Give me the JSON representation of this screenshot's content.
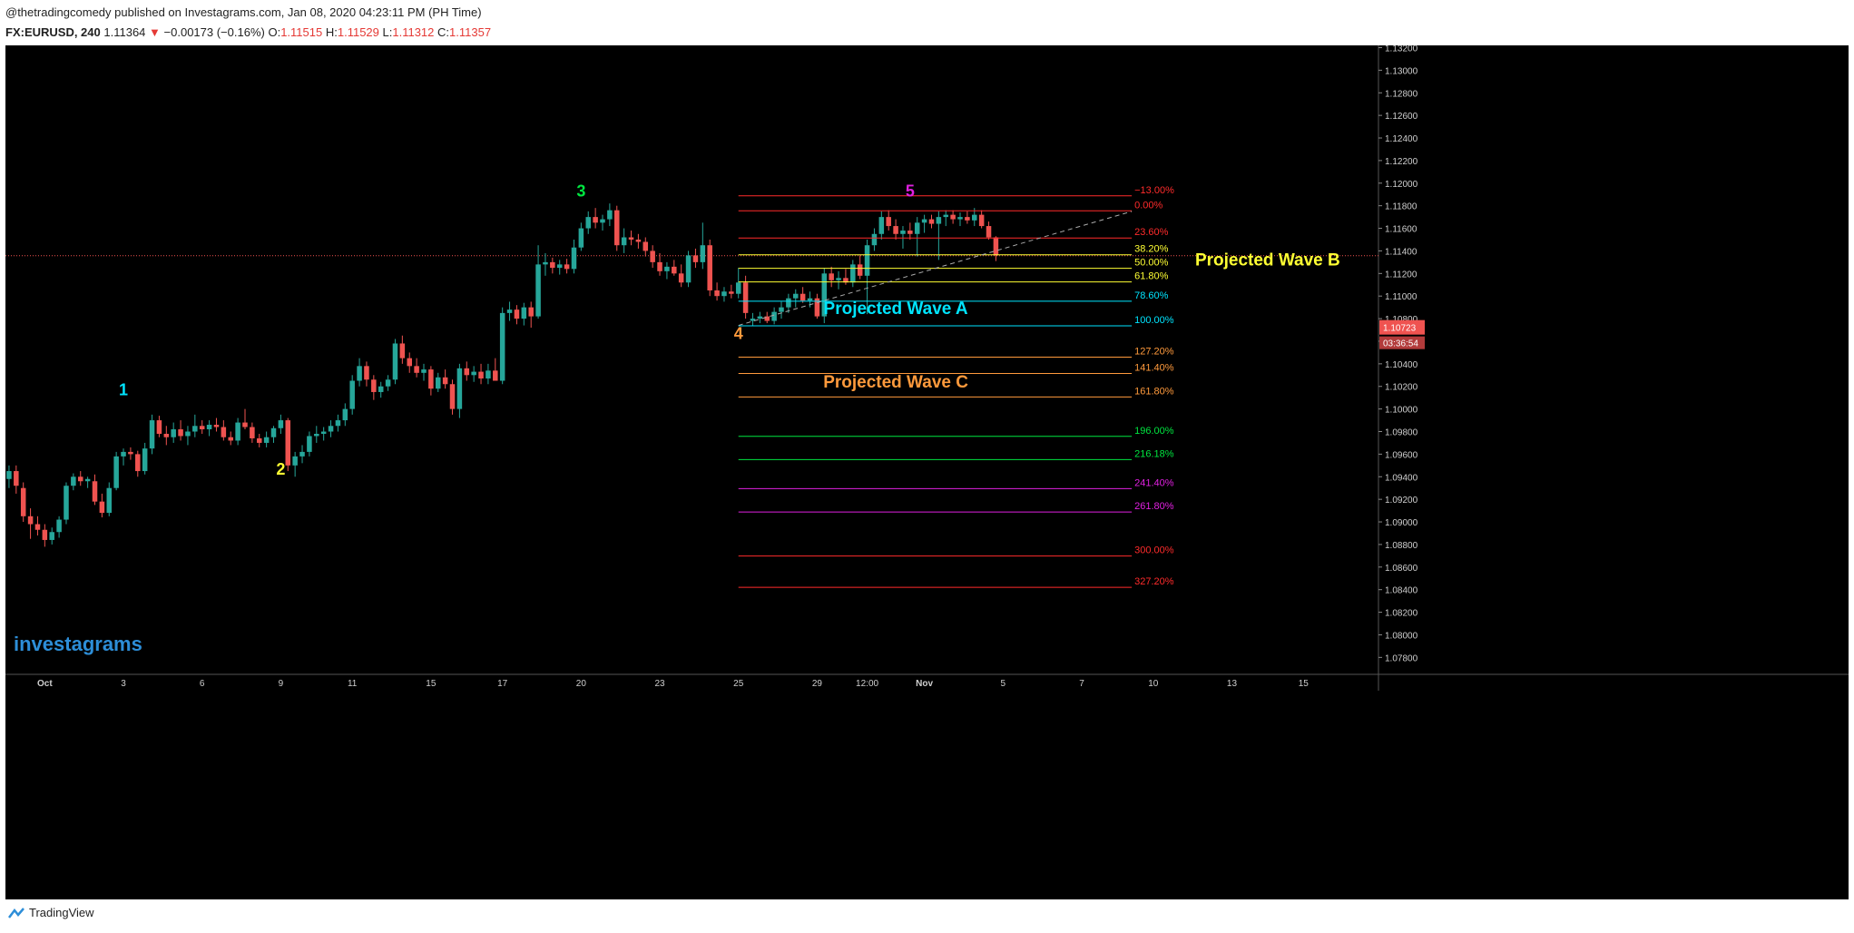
{
  "header": {
    "publisher": "@thetradingcomedy published on Investagrams.com, Jan 08, 2020 04:23:11 PM (PH Time)",
    "symbol": "FX:EURUSD, 240",
    "last": "1.11364",
    "change": "−0.00173 (−0.16%)",
    "open_label": "O:",
    "open": "1.11515",
    "high_label": "H:",
    "high": "1.11529",
    "low_label": "L:",
    "low": "1.11312",
    "close_label": "C:",
    "close": "1.11357"
  },
  "watermark": "investagrams",
  "footer": {
    "brand": "TradingView"
  },
  "colors": {
    "up": "#26a69a",
    "down": "#ef5350",
    "bg": "#000000",
    "fib_red": "#ff2b2b",
    "fib_yellow": "#ffff33",
    "fib_cyan": "#00e5ff",
    "fib_orange": "#ff9a3c",
    "fib_green": "#00e640",
    "fib_magenta": "#e020e0"
  },
  "chart_data": {
    "type": "candlestick",
    "symbol": "FX:EURUSD",
    "timeframe": "240",
    "ylim": [
      1.0765,
      1.1322
    ],
    "y_ticks": [
      "1.13200",
      "1.13000",
      "1.12800",
      "1.12600",
      "1.12400",
      "1.12200",
      "1.12000",
      "1.11800",
      "1.11600",
      "1.11400",
      "1.11200",
      "1.11000",
      "1.10800",
      "1.10600",
      "1.10400",
      "1.10200",
      "1.10000",
      "1.09800",
      "1.09600",
      "1.09400",
      "1.09200",
      "1.09000",
      "1.08800",
      "1.08600",
      "1.08400",
      "1.08200",
      "1.08000",
      "1.07800"
    ],
    "x_ticks": [
      {
        "label": "Oct",
        "bar": 5,
        "bold": true
      },
      {
        "label": "3",
        "bar": 16
      },
      {
        "label": "6",
        "bar": 27
      },
      {
        "label": "9",
        "bar": 38
      },
      {
        "label": "11",
        "bar": 48
      },
      {
        "label": "15",
        "bar": 59
      },
      {
        "label": "17",
        "bar": 69
      },
      {
        "label": "20",
        "bar": 80
      },
      {
        "label": "23",
        "bar": 91
      },
      {
        "label": "25",
        "bar": 102
      },
      {
        "label": "29",
        "bar": 113
      },
      {
        "label": "12:00",
        "bar": 120
      },
      {
        "label": "Nov",
        "bar": 128,
        "bold": true
      },
      {
        "label": "5",
        "bar": 139
      },
      {
        "label": "7",
        "bar": 150
      },
      {
        "label": "10",
        "bar": 160
      },
      {
        "label": "13",
        "bar": 171
      },
      {
        "label": "15",
        "bar": 181
      }
    ],
    "total_bars": 192,
    "current_price": "1.10723",
    "countdown": "03:36:54",
    "price_line": 1.11357,
    "ohlc": [
      [
        1.0938,
        1.095,
        1.093,
        1.0945
      ],
      [
        1.0945,
        1.095,
        1.0925,
        1.0932
      ],
      [
        1.093,
        1.0935,
        1.09,
        1.0905
      ],
      [
        1.0905,
        1.0912,
        1.0885,
        1.0898
      ],
      [
        1.0898,
        1.0905,
        1.0888,
        1.0893
      ],
      [
        1.0893,
        1.0898,
        1.0878,
        1.0884
      ],
      [
        1.0884,
        1.0895,
        1.088,
        1.0891
      ],
      [
        1.0891,
        1.0905,
        1.0886,
        1.0902
      ],
      [
        1.0902,
        1.0935,
        1.0898,
        1.0932
      ],
      [
        1.0932,
        1.0943,
        1.0928,
        1.094
      ],
      [
        1.094,
        1.0945,
        1.0932,
        1.0936
      ],
      [
        1.0936,
        1.094,
        1.093,
        1.0938
      ],
      [
        1.0936,
        1.0942,
        1.0915,
        1.0918
      ],
      [
        1.0918,
        1.0925,
        1.0904,
        1.0908
      ],
      [
        1.0908,
        1.0935,
        1.0905,
        1.093
      ],
      [
        1.093,
        1.0962,
        1.0928,
        1.0958
      ],
      [
        1.0958,
        1.0965,
        1.095,
        1.0962
      ],
      [
        1.0962,
        1.0966,
        1.0955,
        1.096
      ],
      [
        1.096,
        1.0963,
        1.094,
        1.0945
      ],
      [
        1.0945,
        1.097,
        1.0942,
        1.0965
      ],
      [
        1.0965,
        1.0995,
        1.096,
        1.099
      ],
      [
        1.099,
        1.0994,
        1.0975,
        1.0978
      ],
      [
        1.0978,
        1.0985,
        1.0968,
        1.0975
      ],
      [
        1.0975,
        1.0988,
        1.097,
        1.0982
      ],
      [
        1.0982,
        1.099,
        1.0972,
        1.0976
      ],
      [
        1.0976,
        1.0985,
        1.0968,
        1.098
      ],
      [
        1.098,
        1.0995,
        1.0975,
        1.0985
      ],
      [
        1.0985,
        1.099,
        1.0978,
        1.0982
      ],
      [
        1.0982,
        1.099,
        1.0976,
        1.0986
      ],
      [
        1.0986,
        1.0992,
        1.098,
        1.0984
      ],
      [
        1.0984,
        1.099,
        1.0972,
        1.0975
      ],
      [
        1.0975,
        1.098,
        1.0968,
        1.0972
      ],
      [
        1.0972,
        1.0992,
        1.0968,
        1.0988
      ],
      [
        1.0988,
        1.1,
        1.0982,
        1.0984
      ],
      [
        1.0984,
        1.0988,
        1.097,
        1.0974
      ],
      [
        1.0974,
        1.0978,
        1.0966,
        1.097
      ],
      [
        1.097,
        1.098,
        1.0966,
        1.0975
      ],
      [
        1.0975,
        1.0985,
        1.097,
        1.0983
      ],
      [
        1.0983,
        1.0995,
        1.0978,
        1.099
      ],
      [
        1.099,
        1.0992,
        1.0945,
        1.095
      ],
      [
        1.095,
        1.0962,
        1.094,
        1.0958
      ],
      [
        1.0958,
        1.0968,
        1.0952,
        1.0962
      ],
      [
        1.0962,
        1.098,
        1.0958,
        1.0976
      ],
      [
        1.0976,
        1.0985,
        1.097,
        1.0978
      ],
      [
        1.0978,
        1.0984,
        1.0972,
        1.098
      ],
      [
        1.098,
        1.099,
        1.0975,
        1.0985
      ],
      [
        1.0985,
        1.0995,
        1.098,
        1.099
      ],
      [
        1.099,
        1.1005,
        1.0985,
        1.1
      ],
      [
        1.1,
        1.103,
        1.0995,
        1.1025
      ],
      [
        1.1025,
        1.1045,
        1.102,
        1.1038
      ],
      [
        1.1038,
        1.1042,
        1.102,
        1.1026
      ],
      [
        1.1026,
        1.103,
        1.1008,
        1.1015
      ],
      [
        1.1015,
        1.1024,
        1.101,
        1.102
      ],
      [
        1.102,
        1.103,
        1.1016,
        1.1026
      ],
      [
        1.1026,
        1.1062,
        1.1022,
        1.1058
      ],
      [
        1.1058,
        1.1065,
        1.104,
        1.1045
      ],
      [
        1.1045,
        1.105,
        1.1032,
        1.1038
      ],
      [
        1.1038,
        1.1045,
        1.1028,
        1.1032
      ],
      [
        1.1032,
        1.104,
        1.1025,
        1.1035
      ],
      [
        1.1035,
        1.1038,
        1.1012,
        1.1018
      ],
      [
        1.1018,
        1.1032,
        1.1015,
        1.1028
      ],
      [
        1.1028,
        1.1035,
        1.1018,
        1.1022
      ],
      [
        1.1022,
        1.1026,
        1.0995,
        1.1
      ],
      [
        1.1,
        1.104,
        1.0992,
        1.1036
      ],
      [
        1.1036,
        1.1042,
        1.1025,
        1.103
      ],
      [
        1.103,
        1.1038,
        1.1024,
        1.1033
      ],
      [
        1.1033,
        1.104,
        1.1022,
        1.1027
      ],
      [
        1.1027,
        1.104,
        1.1022,
        1.1034
      ],
      [
        1.1034,
        1.1045,
        1.1028,
        1.1025
      ],
      [
        1.1025,
        1.109,
        1.1022,
        1.1085
      ],
      [
        1.1085,
        1.1095,
        1.1078,
        1.1088
      ],
      [
        1.1088,
        1.1092,
        1.1075,
        1.108
      ],
      [
        1.108,
        1.1094,
        1.1074,
        1.109
      ],
      [
        1.109,
        1.1095,
        1.1072,
        1.1082
      ],
      [
        1.1082,
        1.1145,
        1.108,
        1.1128
      ],
      [
        1.1128,
        1.1138,
        1.1118,
        1.113
      ],
      [
        1.113,
        1.1134,
        1.112,
        1.1125
      ],
      [
        1.1125,
        1.1132,
        1.1119,
        1.1128
      ],
      [
        1.1128,
        1.1133,
        1.112,
        1.1124
      ],
      [
        1.1124,
        1.115,
        1.112,
        1.1143
      ],
      [
        1.1143,
        1.1165,
        1.114,
        1.116
      ],
      [
        1.116,
        1.1175,
        1.1155,
        1.117
      ],
      [
        1.117,
        1.1178,
        1.116,
        1.1165
      ],
      [
        1.1165,
        1.1172,
        1.1158,
        1.1168
      ],
      [
        1.1168,
        1.1182,
        1.1162,
        1.1176
      ],
      [
        1.1176,
        1.118,
        1.114,
        1.1145
      ],
      [
        1.1145,
        1.116,
        1.1138,
        1.1152
      ],
      [
        1.1152,
        1.1158,
        1.1145,
        1.115
      ],
      [
        1.115,
        1.1155,
        1.1142,
        1.1148
      ],
      [
        1.1148,
        1.1152,
        1.1135,
        1.114
      ],
      [
        1.114,
        1.1145,
        1.1125,
        1.113
      ],
      [
        1.113,
        1.1138,
        1.1118,
        1.1122
      ],
      [
        1.1122,
        1.113,
        1.1115,
        1.1126
      ],
      [
        1.1126,
        1.1132,
        1.1118,
        1.112
      ],
      [
        1.112,
        1.1128,
        1.1108,
        1.1112
      ],
      [
        1.1112,
        1.114,
        1.1108,
        1.1136
      ],
      [
        1.1136,
        1.1142,
        1.1125,
        1.113
      ],
      [
        1.113,
        1.1165,
        1.1124,
        1.1145
      ],
      [
        1.1145,
        1.115,
        1.11,
        1.1105
      ],
      [
        1.1105,
        1.1112,
        1.1096,
        1.11
      ],
      [
        1.11,
        1.1108,
        1.1095,
        1.1104
      ],
      [
        1.1104,
        1.111,
        1.1098,
        1.1102
      ],
      [
        1.1102,
        1.1125,
        1.1098,
        1.1112
      ],
      [
        1.1112,
        1.1118,
        1.108,
        1.1085
      ],
      [
        1.1078,
        1.1085,
        1.1074,
        1.108
      ],
      [
        1.108,
        1.1086,
        1.1076,
        1.1082
      ],
      [
        1.1082,
        1.1086,
        1.1076,
        1.1078
      ],
      [
        1.1078,
        1.109,
        1.1075,
        1.1086
      ],
      [
        1.1086,
        1.1095,
        1.108,
        1.109
      ],
      [
        1.109,
        1.1102,
        1.1085,
        1.1098
      ],
      [
        1.1098,
        1.1106,
        1.109,
        1.1102
      ],
      [
        1.1102,
        1.1108,
        1.1094,
        1.1096
      ],
      [
        1.1096,
        1.1104,
        1.109,
        1.1098
      ],
      [
        1.1098,
        1.1102,
        1.108,
        1.1082
      ],
      [
        1.1082,
        1.1125,
        1.1076,
        1.112
      ],
      [
        1.112,
        1.1126,
        1.1108,
        1.1114
      ],
      [
        1.1114,
        1.1122,
        1.1106,
        1.1116
      ],
      [
        1.1116,
        1.1124,
        1.111,
        1.1112
      ],
      [
        1.1112,
        1.1132,
        1.1108,
        1.1128
      ],
      [
        1.1128,
        1.1136,
        1.1115,
        1.1118
      ],
      [
        1.1118,
        1.115,
        1.1084,
        1.1145
      ],
      [
        1.1145,
        1.116,
        1.114,
        1.1155
      ],
      [
        1.1155,
        1.1175,
        1.115,
        1.117
      ],
      [
        1.117,
        1.1176,
        1.1158,
        1.1162
      ],
      [
        1.1162,
        1.1168,
        1.115,
        1.1155
      ],
      [
        1.1155,
        1.1162,
        1.1142,
        1.1158
      ],
      [
        1.1158,
        1.1165,
        1.115,
        1.1155
      ],
      [
        1.1155,
        1.117,
        1.1135,
        1.1165
      ],
      [
        1.1165,
        1.1172,
        1.1156,
        1.1168
      ],
      [
        1.1168,
        1.1172,
        1.116,
        1.1164
      ],
      [
        1.1164,
        1.1175,
        1.1132,
        1.117
      ],
      [
        1.117,
        1.1176,
        1.1162,
        1.1172
      ],
      [
        1.1172,
        1.1176,
        1.1164,
        1.1168
      ],
      [
        1.1168,
        1.1174,
        1.1162,
        1.117
      ],
      [
        1.117,
        1.1175,
        1.1164,
        1.1167
      ],
      [
        1.1167,
        1.1178,
        1.1162,
        1.1172
      ],
      [
        1.1172,
        1.1176,
        1.116,
        1.1162
      ],
      [
        1.1162,
        1.1166,
        1.115,
        1.1152
      ],
      [
        1.1152,
        1.1153,
        1.1131,
        1.1136
      ]
    ],
    "wave_labels": [
      {
        "text": "1",
        "bar": 16,
        "price": 1.1012,
        "color": "#00e5ff"
      },
      {
        "text": "2",
        "bar": 38,
        "price": 1.0942,
        "color": "#ffff33"
      },
      {
        "text": "3",
        "bar": 80,
        "price": 1.1188,
        "color": "#00e640"
      },
      {
        "text": "4",
        "bar": 102,
        "price": 1.1062,
        "color": "#ff9a3c"
      },
      {
        "text": "5",
        "bar": 126,
        "price": 1.1188,
        "color": "#e020e0"
      }
    ],
    "annotations": [
      {
        "text": "Projected Wave A",
        "bar": 124,
        "price": 1.1084,
        "color": "#00e5ff"
      },
      {
        "text": "Projected Wave B",
        "bar": 176,
        "price": 1.1127,
        "color": "#ffff33"
      },
      {
        "text": "Projected Wave C",
        "bar": 124,
        "price": 1.1019,
        "color": "#ff9a3c"
      }
    ],
    "trendline": {
      "from": [
        102,
        1.1074
      ],
      "to": [
        157,
        1.1175
      ]
    },
    "fibonacci": {
      "bar_start": 102,
      "bar_end": 157,
      "price_0": 1.11755,
      "price_100": 1.10736,
      "levels": [
        {
          "label": "−13.00%",
          "ratio": -0.13,
          "color": "#ff2b2b"
        },
        {
          "label": "0.00%",
          "ratio": 0.0,
          "color": "#ff2b2b"
        },
        {
          "label": "23.60%",
          "ratio": 0.236,
          "color": "#ff2b2b"
        },
        {
          "label": "38.20%",
          "ratio": 0.382,
          "color": "#ffff33"
        },
        {
          "label": "50.00%",
          "ratio": 0.5,
          "color": "#ffff33"
        },
        {
          "label": "61.80%",
          "ratio": 0.618,
          "color": "#ffff33"
        },
        {
          "label": "78.60%",
          "ratio": 0.786,
          "color": "#00e5ff"
        },
        {
          "label": "100.00%",
          "ratio": 1.0,
          "color": "#00e5ff"
        },
        {
          "label": "127.20%",
          "ratio": 1.272,
          "color": "#ff9a3c"
        },
        {
          "label": "141.40%",
          "ratio": 1.414,
          "color": "#ff9a3c"
        },
        {
          "label": "161.80%",
          "ratio": 1.618,
          "color": "#ff9a3c"
        },
        {
          "label": "196.00%",
          "ratio": 1.96,
          "color": "#00e640"
        },
        {
          "label": "216.18%",
          "ratio": 2.1618,
          "color": "#00e640"
        },
        {
          "label": "241.40%",
          "ratio": 2.414,
          "color": "#e020e0"
        },
        {
          "label": "261.80%",
          "ratio": 2.618,
          "color": "#e020e0"
        },
        {
          "label": "300.00%",
          "ratio": 3.0,
          "color": "#ff2b2b"
        },
        {
          "label": "327.20%",
          "ratio": 3.272,
          "color": "#ff2b2b"
        }
      ]
    }
  }
}
